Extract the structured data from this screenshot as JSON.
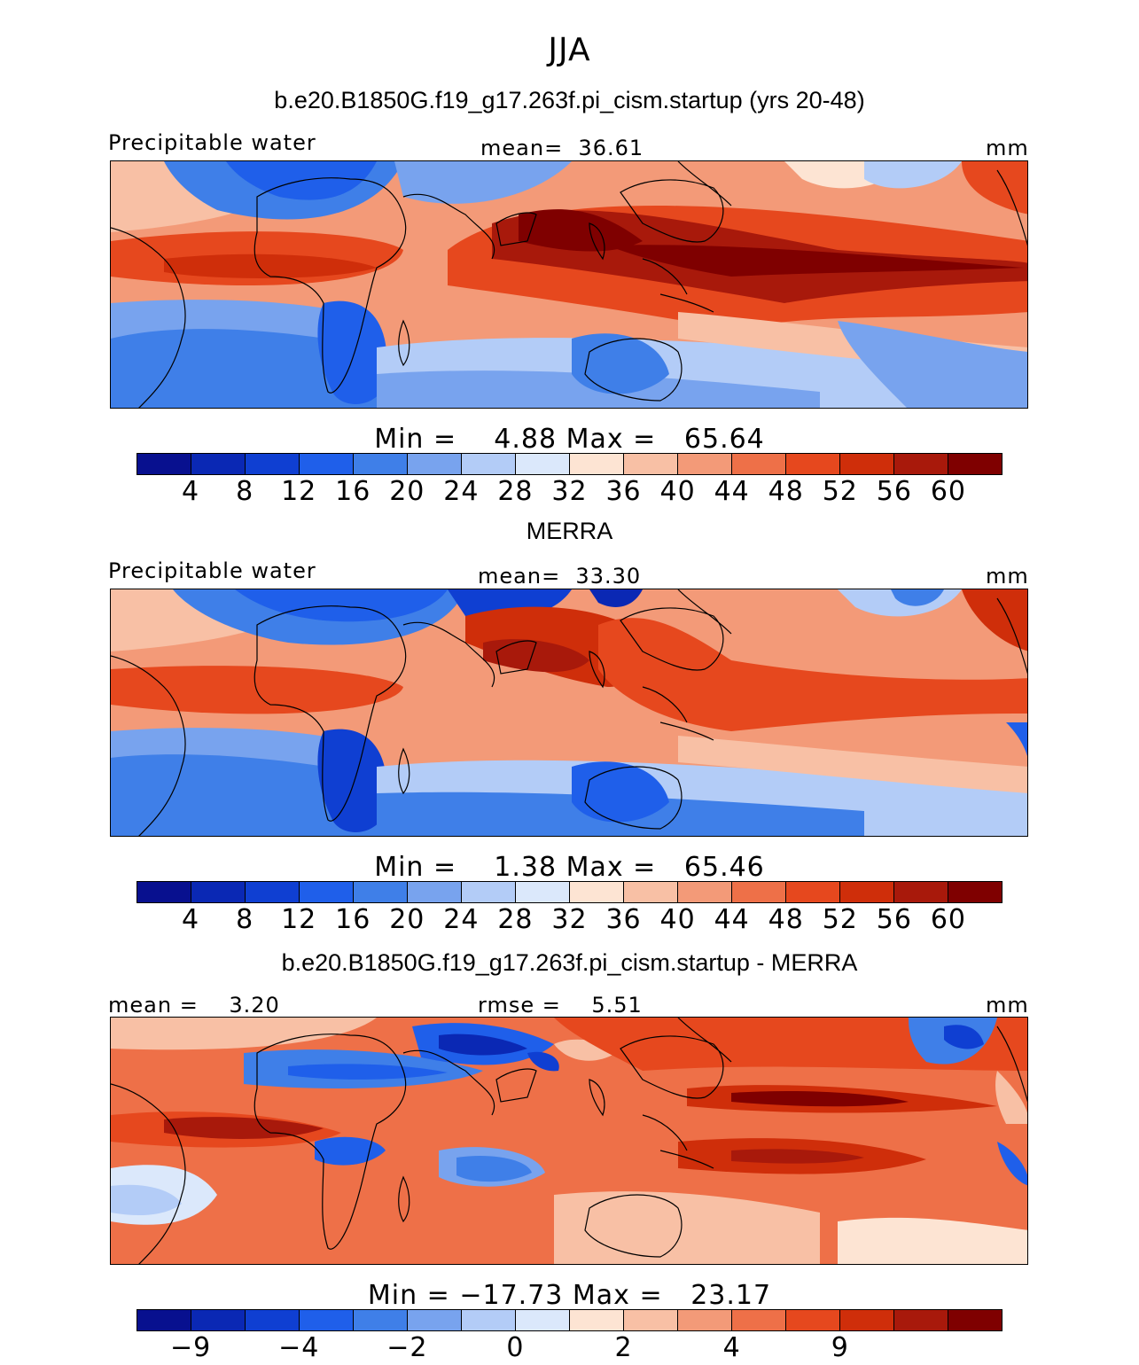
{
  "figure_title": "JJA",
  "panels": [
    {
      "title": "b.e20.B1850G.f19_g17.263f.pi_cism.startup (yrs 20-48)",
      "left_label": "Precipitable water",
      "center_label": "mean=  36.61",
      "units": "mm",
      "min_max": "Min =    4.88 Max =   65.64",
      "tick_labels": [
        "4",
        "8",
        "12",
        "16",
        "20",
        "24",
        "28",
        "32",
        "36",
        "40",
        "44",
        "48",
        "52",
        "56",
        "60"
      ],
      "colors": [
        "#08108f",
        "#0a28b4",
        "#0f3fd2",
        "#1f5fea",
        "#3f7fe8",
        "#78a3ee",
        "#b3ccf7",
        "#dbe8fb",
        "#fde4d3",
        "#f8c0a5",
        "#f39a78",
        "#ee7048",
        "#e6481e",
        "#cf2e0a",
        "#a8190b",
        "#7f0000"
      ],
      "chart_data": {
        "type": "heatmap",
        "variable": "Precipitable water",
        "units": "mm",
        "mean": 36.61,
        "min": 4.88,
        "max": 65.64,
        "contour_levels": [
          4,
          8,
          12,
          16,
          20,
          24,
          28,
          32,
          36,
          40,
          44,
          48,
          52,
          56,
          60
        ]
      }
    },
    {
      "title": "MERRA",
      "left_label": "Precipitable water",
      "center_label": "mean=  33.30",
      "units": "mm",
      "min_max": "Min =    1.38 Max =   65.46",
      "tick_labels": [
        "4",
        "8",
        "12",
        "16",
        "20",
        "24",
        "28",
        "32",
        "36",
        "40",
        "44",
        "48",
        "52",
        "56",
        "60"
      ],
      "colors": [
        "#08108f",
        "#0a28b4",
        "#0f3fd2",
        "#1f5fea",
        "#3f7fe8",
        "#78a3ee",
        "#b3ccf7",
        "#dbe8fb",
        "#fde4d3",
        "#f8c0a5",
        "#f39a78",
        "#ee7048",
        "#e6481e",
        "#cf2e0a",
        "#a8190b",
        "#7f0000"
      ],
      "chart_data": {
        "type": "heatmap",
        "variable": "Precipitable water",
        "units": "mm",
        "mean": 33.3,
        "min": 1.38,
        "max": 65.46,
        "contour_levels": [
          4,
          8,
          12,
          16,
          20,
          24,
          28,
          32,
          36,
          40,
          44,
          48,
          52,
          56,
          60
        ]
      }
    },
    {
      "title": "b.e20.B1850G.f19_g17.263f.pi_cism.startup - MERRA",
      "left_label": "mean =    3.20",
      "center_label": "rmse =    5.51",
      "units": "mm",
      "min_max": "Min = −17.73 Max =   23.17",
      "tick_labels": [
        "−9",
        "−4",
        "−2",
        "0",
        "2",
        "4",
        "9"
      ],
      "tick_label_positions": [
        1,
        3,
        5,
        7,
        9,
        11,
        13
      ],
      "colors": [
        "#08108f",
        "#0a28b4",
        "#0f3fd2",
        "#1f5fea",
        "#3f7fe8",
        "#78a3ee",
        "#b3ccf7",
        "#dbe8fb",
        "#fde4d3",
        "#f8c0a5",
        "#f39a78",
        "#ee7048",
        "#e6481e",
        "#cf2e0a",
        "#a8190b",
        "#7f0000"
      ],
      "chart_data": {
        "type": "heatmap",
        "variable": "difference",
        "units": "mm",
        "mean": 3.2,
        "rmse": 5.51,
        "min": -17.73,
        "max": 23.17,
        "labeled_levels": [
          -9,
          -4,
          -2,
          0,
          2,
          4,
          9
        ]
      }
    }
  ]
}
